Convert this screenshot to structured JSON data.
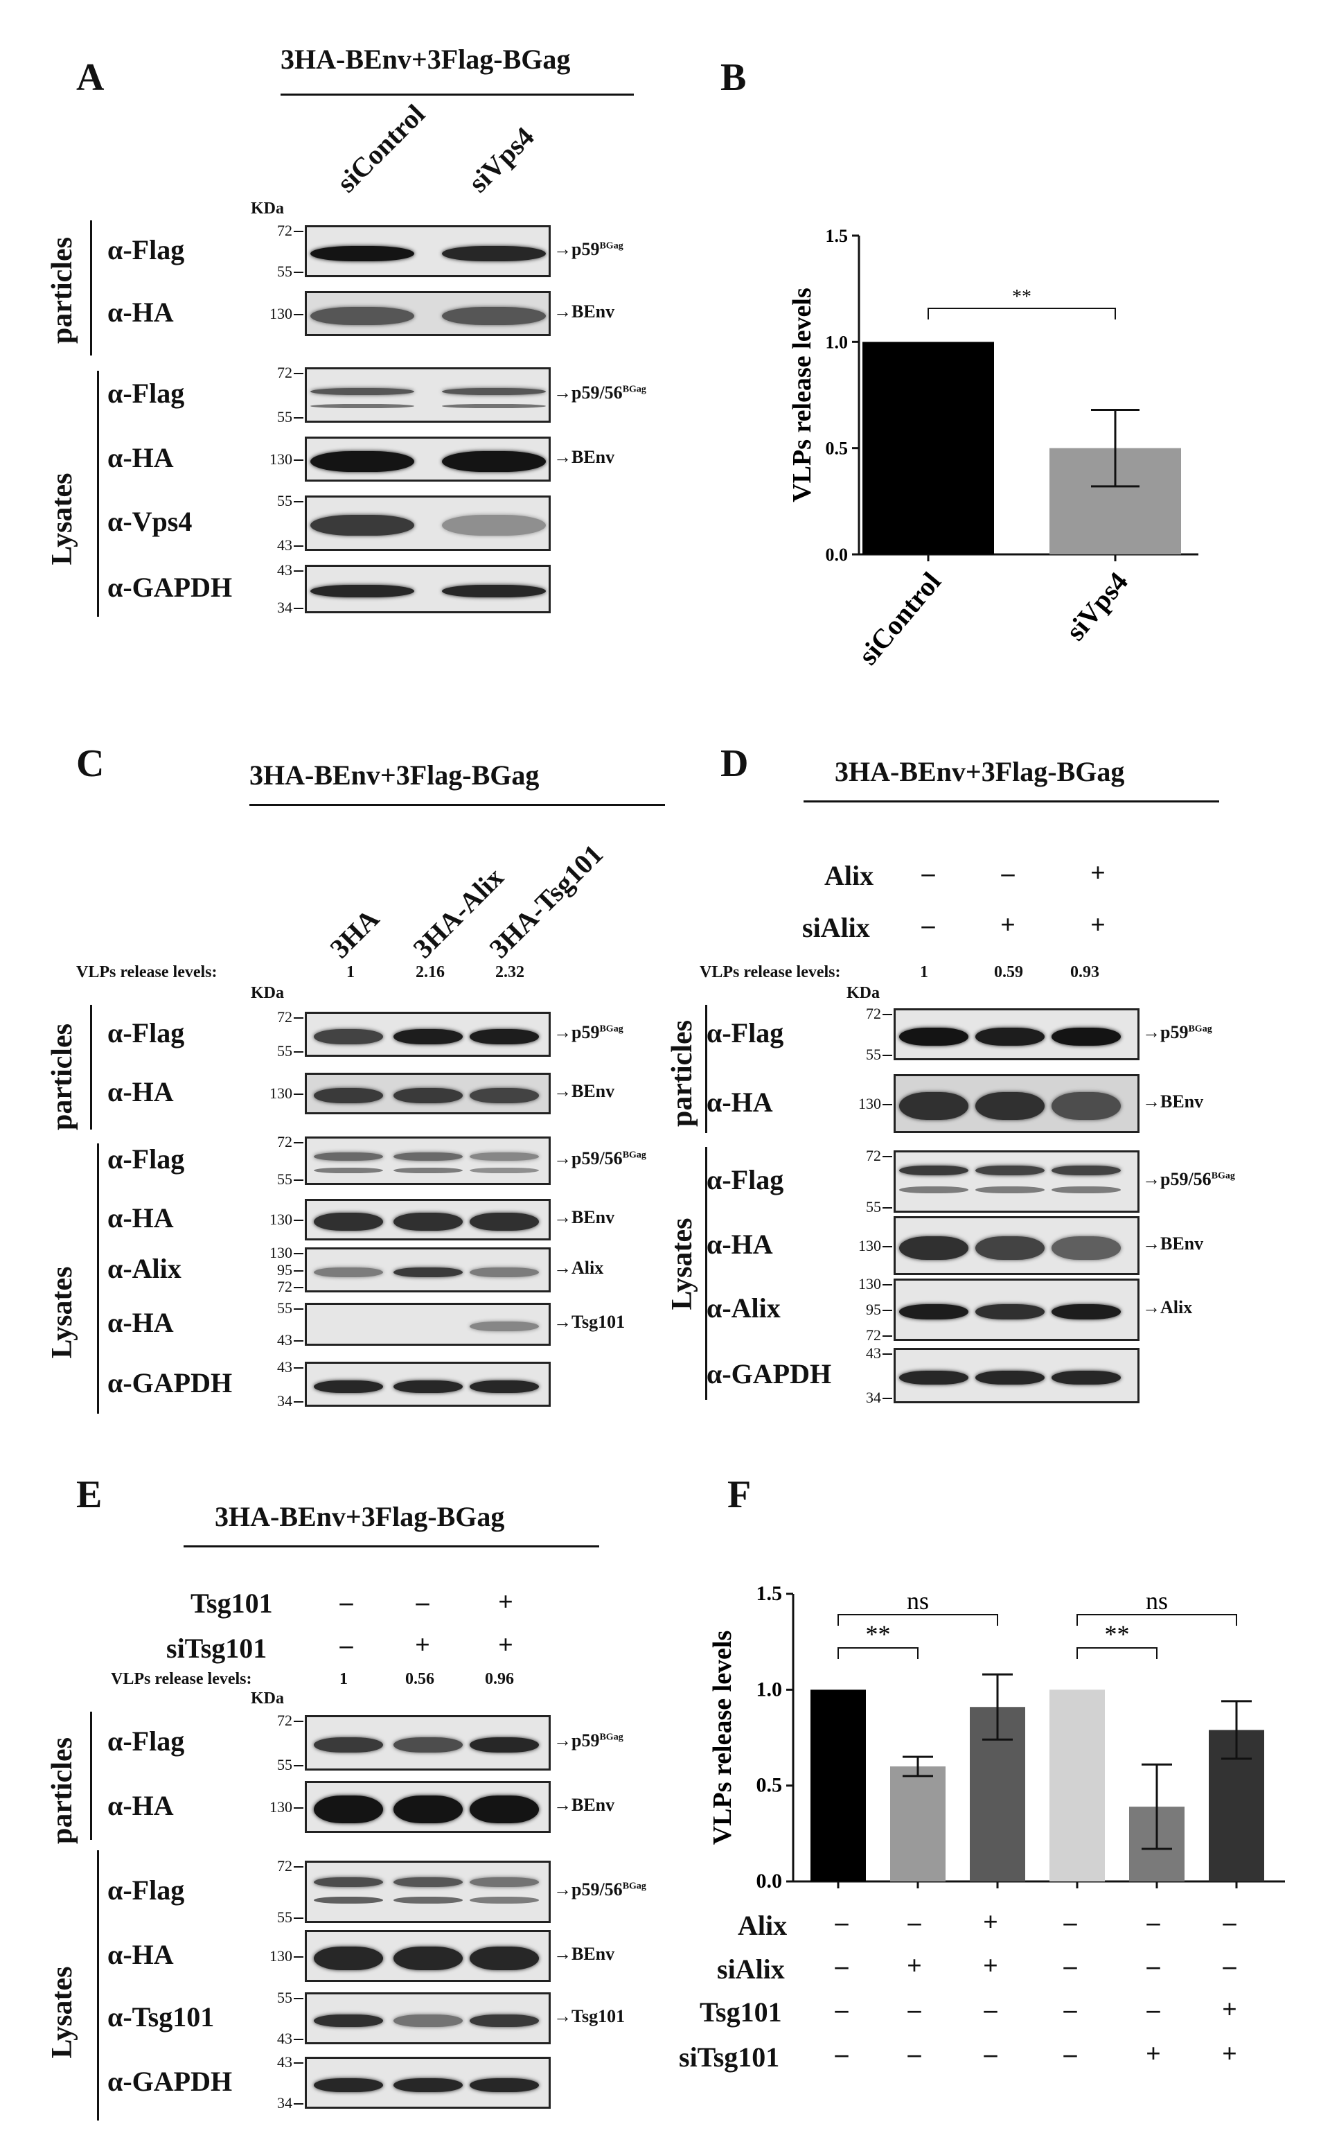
{
  "panels": {
    "A": {
      "label": "A",
      "title": "3HA-BEnv+3Flag-BGag",
      "columns": [
        "siControl",
        "siVps4"
      ],
      "kda": "KDa",
      "groups": {
        "particles": "particles",
        "lysates": "Lysates"
      },
      "rows": [
        {
          "ab": "α-Flag",
          "mw": [
            "72",
            "55"
          ],
          "target": "p59",
          "sup": "BGag"
        },
        {
          "ab": "α-HA",
          "mw": [
            "130"
          ],
          "target": "BEnv",
          "sup": ""
        },
        {
          "ab": "α-Flag",
          "mw": [
            "72",
            "55"
          ],
          "target": "p59/56",
          "sup": "BGag"
        },
        {
          "ab": "α-HA",
          "mw": [
            "130"
          ],
          "target": "BEnv",
          "sup": ""
        },
        {
          "ab": "α-Vps4",
          "mw": [
            "55",
            "43"
          ],
          "target": "",
          "sup": ""
        },
        {
          "ab": "α-GAPDH",
          "mw": [
            "43",
            "34"
          ],
          "target": "",
          "sup": ""
        }
      ]
    },
    "B": {
      "label": "B"
    },
    "C": {
      "label": "C",
      "title": "3HA-BEnv+3Flag-BGag",
      "columns": [
        "3HA",
        "3HA-Alix",
        "3HA-Tsg101"
      ],
      "vlp_label": "VLPs release levels:",
      "vlp_values": [
        "1",
        "2.16",
        "2.32"
      ],
      "kda": "KDa",
      "groups": {
        "particles": "particles",
        "lysates": "Lysates"
      },
      "rows": [
        {
          "ab": "α-Flag",
          "mw": [
            "72",
            "55"
          ],
          "target": "p59",
          "sup": "BGag"
        },
        {
          "ab": "α-HA",
          "mw": [
            "130"
          ],
          "target": "BEnv",
          "sup": ""
        },
        {
          "ab": "α-Flag",
          "mw": [
            "72",
            "55"
          ],
          "target": "p59/56",
          "sup": "BGag"
        },
        {
          "ab": "α-HA",
          "mw": [
            "130"
          ],
          "target": "BEnv",
          "sup": ""
        },
        {
          "ab": "α-Alix",
          "mw": [
            "130",
            "95",
            "72"
          ],
          "target": "Alix",
          "sup": ""
        },
        {
          "ab": "α-HA",
          "mw": [
            "55",
            "43"
          ],
          "target": "Tsg101",
          "sup": ""
        },
        {
          "ab": "α-GAPDH",
          "mw": [
            "43",
            "34"
          ],
          "target": "",
          "sup": ""
        }
      ]
    },
    "D": {
      "label": "D",
      "title": "3HA-BEnv+3Flag-BGag",
      "treat": [
        {
          "name": "Alix",
          "signs": [
            "–",
            "–",
            "+"
          ]
        },
        {
          "name": "siAlix",
          "signs": [
            "–",
            "+",
            "+"
          ]
        }
      ],
      "vlp_label": "VLPs release levels:",
      "vlp_values": [
        "1",
        "0.59",
        "0.93"
      ],
      "kda": "KDa",
      "groups": {
        "particles": "particles",
        "lysates": "Lysates"
      },
      "rows": [
        {
          "ab": "α-Flag",
          "mw": [
            "72",
            "55"
          ],
          "target": "p59",
          "sup": "BGag"
        },
        {
          "ab": "α-HA",
          "mw": [
            "130"
          ],
          "target": "BEnv",
          "sup": ""
        },
        {
          "ab": "α-Flag",
          "mw": [
            "72",
            "55"
          ],
          "target": "p59/56",
          "sup": "BGag"
        },
        {
          "ab": "α-HA",
          "mw": [
            "130"
          ],
          "target": "BEnv",
          "sup": ""
        },
        {
          "ab": "α-Alix",
          "mw": [
            "130",
            "95",
            "72"
          ],
          "target": "Alix",
          "sup": ""
        },
        {
          "ab": "α-GAPDH",
          "mw": [
            "43",
            "34"
          ],
          "target": "",
          "sup": ""
        }
      ]
    },
    "E": {
      "label": "E",
      "title": "3HA-BEnv+3Flag-BGag",
      "treat": [
        {
          "name": "Tsg101",
          "signs": [
            "–",
            "–",
            "+"
          ]
        },
        {
          "name": "siTsg101",
          "signs": [
            "–",
            "+",
            "+"
          ]
        }
      ],
      "vlp_label": "VLPs release levels:",
      "vlp_values": [
        "1",
        "0.56",
        "0.96"
      ],
      "kda": "KDa",
      "groups": {
        "particles": "particles",
        "lysates": "Lysates"
      },
      "rows": [
        {
          "ab": "α-Flag",
          "mw": [
            "72",
            "55"
          ],
          "target": "p59",
          "sup": "BGag"
        },
        {
          "ab": "α-HA",
          "mw": [
            "130"
          ],
          "target": "BEnv",
          "sup": ""
        },
        {
          "ab": "α-Flag",
          "mw": [
            "72",
            "55"
          ],
          "target": "p59/56",
          "sup": "BGag"
        },
        {
          "ab": "α-HA",
          "mw": [
            "130"
          ],
          "target": "BEnv",
          "sup": ""
        },
        {
          "ab": "α-Tsg101",
          "mw": [
            "55",
            "43"
          ],
          "target": "Tsg101",
          "sup": ""
        },
        {
          "ab": "α-GAPDH",
          "mw": [
            "43",
            "34"
          ],
          "target": "",
          "sup": ""
        }
      ]
    },
    "F": {
      "label": "F",
      "treat": [
        {
          "name": "Alix",
          "signs": [
            "–",
            "–",
            "+",
            "–",
            "–",
            "–"
          ]
        },
        {
          "name": "siAlix",
          "signs": [
            "–",
            "+",
            "+",
            "–",
            "–",
            "–"
          ]
        },
        {
          "name": "Tsg101",
          "signs": [
            "–",
            "–",
            "–",
            "–",
            "–",
            "+"
          ]
        },
        {
          "name": "siTsg101",
          "signs": [
            "–",
            "–",
            "–",
            "–",
            "+",
            "+"
          ]
        }
      ]
    }
  },
  "chart_data": [
    {
      "type": "bar",
      "panel": "B",
      "categories": [
        "siControl",
        "siVps4"
      ],
      "values": [
        1.0,
        0.5
      ],
      "errors": [
        0,
        0.18
      ],
      "colors": [
        "#000000",
        "#9a9a9a"
      ],
      "ylabel": "VLPs release levels",
      "ylim": [
        0,
        1.5
      ],
      "yticks": [
        "0.0",
        "0.5",
        "1.0",
        "1.5"
      ],
      "annotations": [
        {
          "between": [
            0,
            1
          ],
          "text": "**"
        }
      ]
    },
    {
      "type": "bar",
      "panel": "F",
      "categories": [
        "",
        "",
        "",
        "",
        "",
        ""
      ],
      "values": [
        1.0,
        0.6,
        0.91,
        1.0,
        0.39,
        0.79
      ],
      "errors": [
        0,
        0.05,
        0.17,
        0,
        0.22,
        0.15
      ],
      "colors": [
        "#000000",
        "#9a9a9a",
        "#5a5a5a",
        "#d2d2d2",
        "#7a7a7a",
        "#333333"
      ],
      "ylabel": "VLPs release levels",
      "ylim": [
        0,
        1.5
      ],
      "yticks": [
        "0.0",
        "0.5",
        "1.0",
        "1.5"
      ],
      "annotations": [
        {
          "between": [
            0,
            1
          ],
          "text": "**"
        },
        {
          "between": [
            0,
            2
          ],
          "text": "ns"
        },
        {
          "between": [
            3,
            4
          ],
          "text": "**"
        },
        {
          "between": [
            3,
            5
          ],
          "text": "ns"
        }
      ]
    }
  ]
}
